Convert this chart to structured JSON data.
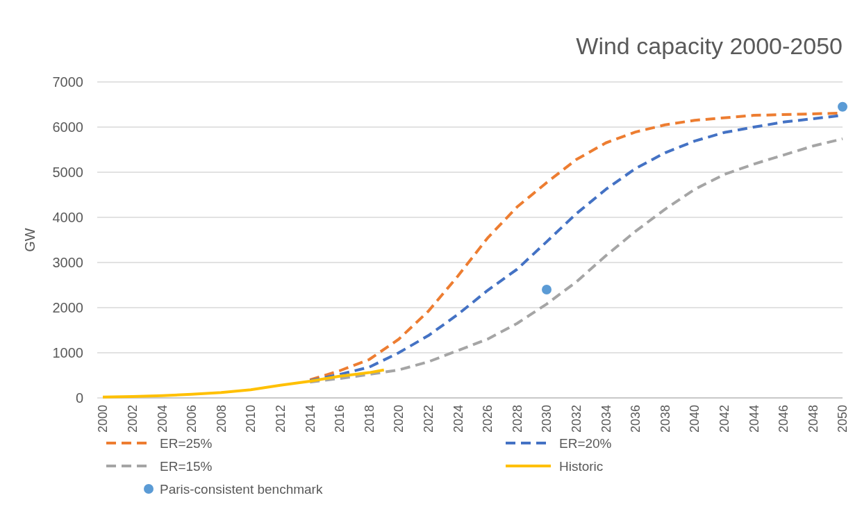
{
  "chart_data": {
    "type": "line",
    "title": "Wind capacity 2000-2050",
    "ylabel": "GW",
    "xlim": [
      2000,
      2050
    ],
    "ylim": [
      0,
      7000
    ],
    "xticks": [
      2000,
      2002,
      2004,
      2006,
      2008,
      2010,
      2012,
      2014,
      2016,
      2018,
      2020,
      2022,
      2024,
      2026,
      2028,
      2030,
      2032,
      2034,
      2036,
      2038,
      2040,
      2042,
      2044,
      2046,
      2048,
      2050
    ],
    "yticks": [
      0,
      1000,
      2000,
      3000,
      4000,
      5000,
      6000,
      7000
    ],
    "grid": "y",
    "legend": "bottom",
    "series": [
      {
        "name": "ER=25%",
        "color": "#ed7d31",
        "line_style": "dashed",
        "x": [
          2014,
          2016,
          2018,
          2020,
          2022,
          2024,
          2026,
          2028,
          2030,
          2032,
          2034,
          2036,
          2038,
          2040,
          2044,
          2050
        ],
        "values": [
          400,
          600,
          850,
          1300,
          1920,
          2700,
          3540,
          4230,
          4770,
          5280,
          5650,
          5890,
          6050,
          6150,
          6260,
          6310
        ]
      },
      {
        "name": "ER=20%",
        "color": "#4472c4",
        "line_style": "dashed",
        "x": [
          2014,
          2016,
          2018,
          2020,
          2022,
          2024,
          2026,
          2028,
          2030,
          2032,
          2034,
          2036,
          2038,
          2040,
          2042,
          2044,
          2046,
          2050
        ],
        "values": [
          380,
          520,
          680,
          1000,
          1380,
          1850,
          2380,
          2850,
          3460,
          4080,
          4620,
          5080,
          5430,
          5690,
          5880,
          6000,
          6110,
          6260
        ]
      },
      {
        "name": "ER=15%",
        "color": "#a5a5a5",
        "line_style": "dashed",
        "x": [
          2014,
          2016,
          2018,
          2020,
          2022,
          2024,
          2026,
          2028,
          2030,
          2032,
          2034,
          2036,
          2038,
          2040,
          2042,
          2044,
          2046,
          2048,
          2050
        ],
        "values": [
          350,
          430,
          520,
          620,
          800,
          1050,
          1300,
          1650,
          2080,
          2570,
          3150,
          3690,
          4180,
          4620,
          4950,
          5180,
          5380,
          5580,
          5740
        ]
      },
      {
        "name": "Historic",
        "color": "#ffc000",
        "line_style": "solid",
        "x": [
          2000,
          2002,
          2004,
          2006,
          2008,
          2010,
          2012,
          2014,
          2016,
          2018,
          2019
        ],
        "values": [
          20,
          30,
          50,
          80,
          120,
          180,
          280,
          370,
          480,
          560,
          620
        ]
      },
      {
        "name": "Paris-consistent benchmark",
        "type": "scatter",
        "marker": "circle",
        "color": "#5b9bd5",
        "x": [
          2030,
          2050
        ],
        "values": [
          2400,
          6450
        ]
      }
    ]
  }
}
